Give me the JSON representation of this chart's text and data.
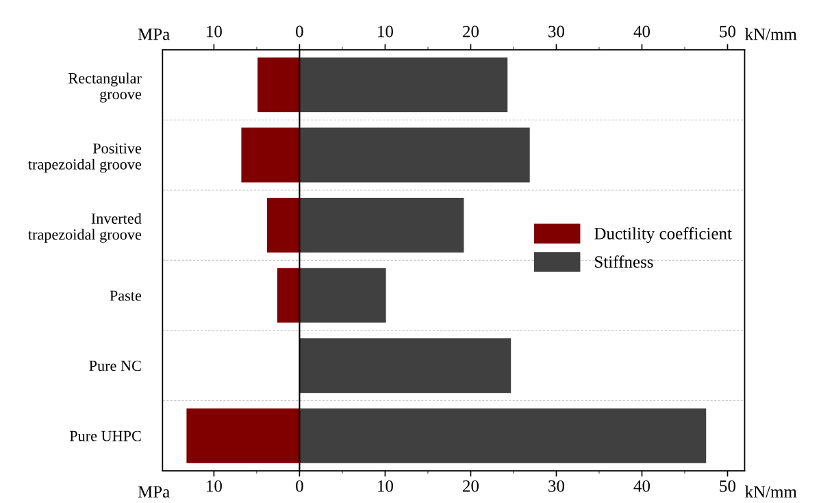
{
  "chart_data": {
    "type": "bar",
    "orientation": "horizontal",
    "stacked": true,
    "categories": [
      "Rectangular\ngroove",
      "Positive\ntrapezoidal groove",
      "Inverted\ntrapezoidal groove",
      "Paste",
      "Pure NC",
      "Pure UHPC"
    ],
    "series": [
      {
        "name": "Ductility coefficient",
        "color": "#800000",
        "values": [
          -4.9,
          -6.8,
          -3.8,
          -2.6,
          null,
          -13.2
        ]
      },
      {
        "name": "Stiffness",
        "color": "#404040",
        "values": [
          24.3,
          26.9,
          19.2,
          10.1,
          24.7,
          47.5
        ]
      }
    ],
    "xlim": [
      -16,
      52
    ],
    "xticks": [
      {
        "value": -10,
        "label": "10"
      },
      0,
      10,
      20,
      30,
      40,
      50
    ],
    "x2lim": [
      -16,
      52
    ],
    "x2ticks": [
      {
        "value": -10,
        "label": "10"
      },
      0,
      10,
      20,
      30,
      40,
      50
    ],
    "xlabel": "kN/mm",
    "x2label": "kN/mm",
    "annotations": [
      "MPa",
      "MPa"
    ],
    "ref_lines": [
      {
        "axis": "x",
        "value": 0,
        "color": "#000000"
      }
    ],
    "grid": "y",
    "legend": "right"
  }
}
